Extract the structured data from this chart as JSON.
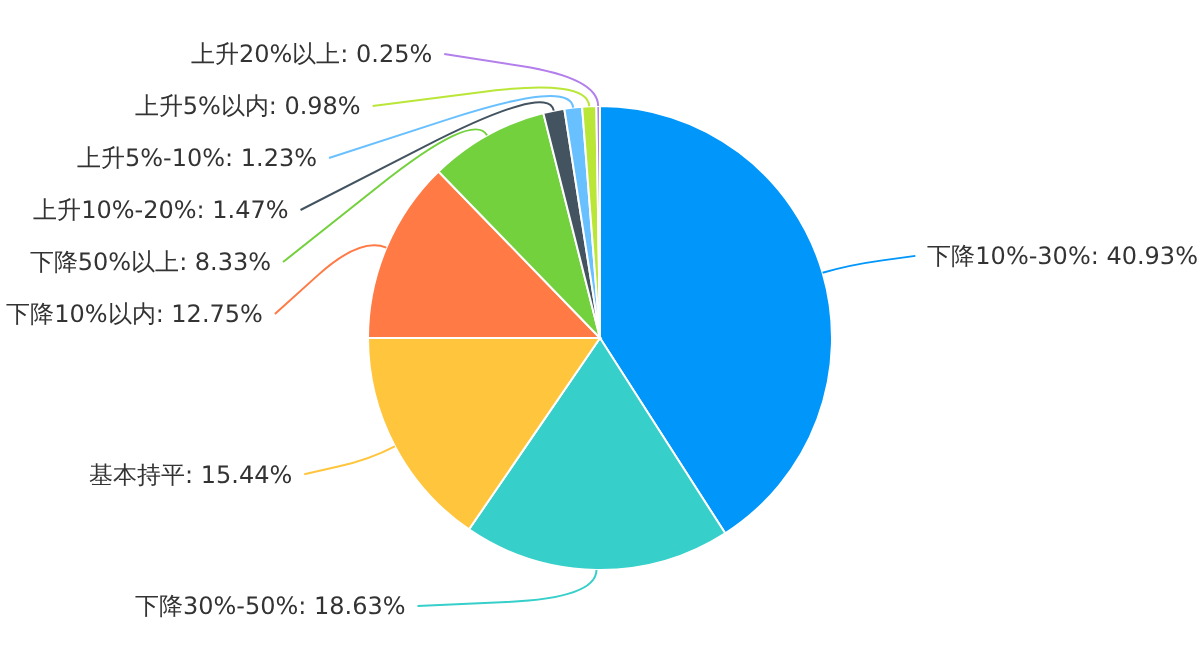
{
  "chart_data": {
    "type": "pie",
    "categories": [
      "下降10%-30%",
      "下降30%-50%",
      "基本持平",
      "下降10%以内",
      "下降50%以上",
      "上升10%-20%",
      "上升5%-10%",
      "上升5%以内",
      "上升20%以上"
    ],
    "values": [
      40.93,
      18.63,
      15.44,
      12.75,
      8.33,
      1.47,
      1.23,
      0.98,
      0.25
    ],
    "colors": [
      "#0096fa",
      "#36cfc9",
      "#ffc53d",
      "#ff7a45",
      "#73d13d",
      "#435460",
      "#69c0ff",
      "#bae637",
      "#b37feb"
    ],
    "value_labels": [
      ": 40.93%",
      ": 18.63%",
      ": 15.44%",
      ": 12.75%",
      ": 8.33%",
      ": 1.47%",
      ": 1.23%",
      ": 0.98%",
      ": 0.25%"
    ]
  }
}
